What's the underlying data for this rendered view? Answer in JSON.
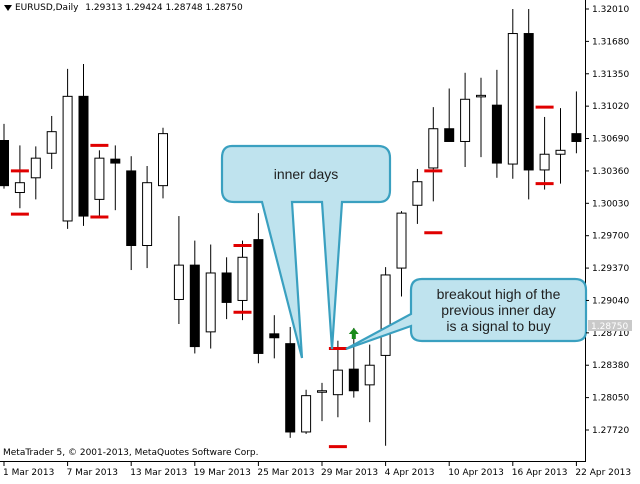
{
  "header": {
    "symbol": "EURUSD,Daily",
    "ohlc": "1.29313 1.29424 1.28748 1.28750"
  },
  "footer": {
    "copyright": "MetaTrader 5, © 2001-2013, MetaQuotes Software Corp."
  },
  "callouts": {
    "inner_days": "inner days",
    "breakout": "breakout high of the\nprevious inner day\nis a signal to buy"
  },
  "colors": {
    "bear": "#000000",
    "bull": "#ffffff",
    "marker": "#e00000",
    "arrow": "#1a8a1a",
    "callout_border": "#3aa0c0",
    "callout_fill": "#bfe3ee"
  },
  "chart_data": {
    "type": "candlestick",
    "title": "",
    "symbol": "EURUSD",
    "timeframe": "Daily",
    "current_price": "1.28750",
    "y_ticks": [
      "1.32010",
      "1.31680",
      "1.31350",
      "1.31020",
      "1.30690",
      "1.30360",
      "1.30030",
      "1.29700",
      "1.29370",
      "1.29040",
      "1.28710",
      "1.28380",
      "1.28050",
      "1.27720"
    ],
    "x_ticks": [
      {
        "label": "1 Mar 2013",
        "index": 0
      },
      {
        "label": "7 Mar 2013",
        "index": 4
      },
      {
        "label": "13 Mar 2013",
        "index": 8
      },
      {
        "label": "19 Mar 2013",
        "index": 12
      },
      {
        "label": "25 Mar 2013",
        "index": 16
      },
      {
        "label": "29 Mar 2013",
        "index": 20
      },
      {
        "label": "4 Apr 2013",
        "index": 24
      },
      {
        "label": "10 Apr 2013",
        "index": 28
      },
      {
        "label": "16 Apr 2013",
        "index": 32
      },
      {
        "label": "22 Apr 2013",
        "index": 36
      }
    ],
    "ylim": [
      1.276,
      1.321
    ],
    "grid": false,
    "candles": [
      {
        "o": 1.3067,
        "h": 1.3084,
        "l": 1.3018,
        "c": 1.3021
      },
      {
        "o": 1.3014,
        "h": 1.3062,
        "l": 1.2998,
        "c": 1.3024
      },
      {
        "o": 1.3029,
        "h": 1.3061,
        "l": 1.3007,
        "c": 1.3049
      },
      {
        "o": 1.3054,
        "h": 1.3092,
        "l": 1.3038,
        "c": 1.3076
      },
      {
        "o": 1.2985,
        "h": 1.314,
        "l": 1.2977,
        "c": 1.3112
      },
      {
        "o": 1.3112,
        "h": 1.3145,
        "l": 1.298,
        "c": 1.299
      },
      {
        "o": 1.3007,
        "h": 1.3057,
        "l": 1.2989,
        "c": 1.3049
      },
      {
        "o": 1.3048,
        "h": 1.3062,
        "l": 1.2996,
        "c": 1.3044
      },
      {
        "o": 1.3036,
        "h": 1.3051,
        "l": 1.2935,
        "c": 1.296
      },
      {
        "o": 1.296,
        "h": 1.3041,
        "l": 1.2937,
        "c": 1.3024
      },
      {
        "o": 1.3021,
        "h": 1.308,
        "l": 1.3008,
        "c": 1.3074
      },
      {
        "o": 1.2905,
        "h": 1.299,
        "l": 1.288,
        "c": 1.294
      },
      {
        "o": 1.294,
        "h": 1.2965,
        "l": 1.285,
        "c": 1.2857
      },
      {
        "o": 1.2872,
        "h": 1.2961,
        "l": 1.2855,
        "c": 1.2932
      },
      {
        "o": 1.2932,
        "h": 1.2948,
        "l": 1.2885,
        "c": 1.2902
      },
      {
        "o": 1.2904,
        "h": 1.2965,
        "l": 1.2884,
        "c": 1.2948
      },
      {
        "o": 1.2966,
        "h": 1.2993,
        "l": 1.284,
        "c": 1.285
      },
      {
        "o": 1.287,
        "h": 1.2889,
        "l": 1.2845,
        "c": 1.2866
      },
      {
        "o": 1.286,
        "h": 1.2877,
        "l": 1.2764,
        "c": 1.277
      },
      {
        "o": 1.277,
        "h": 1.2813,
        "l": 1.2768,
        "c": 1.2807
      },
      {
        "o": 1.2811,
        "h": 1.282,
        "l": 1.2781,
        "c": 1.2812
      },
      {
        "o": 1.2808,
        "h": 1.2863,
        "l": 1.2785,
        "c": 1.2833
      },
      {
        "o": 1.2834,
        "h": 1.2876,
        "l": 1.2805,
        "c": 1.2812
      },
      {
        "o": 1.2818,
        "h": 1.2859,
        "l": 1.278,
        "c": 1.2838
      },
      {
        "o": 1.2848,
        "h": 1.2938,
        "l": 1.2756,
        "c": 1.293
      },
      {
        "o": 1.2937,
        "h": 1.2995,
        "l": 1.2908,
        "c": 1.2993
      },
      {
        "o": 1.3001,
        "h": 1.3038,
        "l": 1.2982,
        "c": 1.3025
      },
      {
        "o": 1.3039,
        "h": 1.3101,
        "l": 1.3005,
        "c": 1.3079
      },
      {
        "o": 1.3079,
        "h": 1.312,
        "l": 1.3067,
        "c": 1.3066
      },
      {
        "o": 1.3066,
        "h": 1.3136,
        "l": 1.304,
        "c": 1.3109
      },
      {
        "o": 1.3112,
        "h": 1.3131,
        "l": 1.305,
        "c": 1.3113
      },
      {
        "o": 1.3103,
        "h": 1.3139,
        "l": 1.3029,
        "c": 1.3044
      },
      {
        "o": 1.3043,
        "h": 1.3201,
        "l": 1.3028,
        "c": 1.3176
      },
      {
        "o": 1.3176,
        "h": 1.3201,
        "l": 1.3007,
        "c": 1.3037
      },
      {
        "o": 1.3037,
        "h": 1.3091,
        "l": 1.3017,
        "c": 1.3053
      },
      {
        "o": 1.3053,
        "h": 1.31,
        "l": 1.3023,
        "c": 1.3057
      },
      {
        "o": 1.3074,
        "h": 1.3117,
        "l": 1.3054,
        "c": 1.3066
      }
    ],
    "inner_day_markers": [
      {
        "index": 1,
        "high": 1.3036,
        "low": 1.2992
      },
      {
        "index": 6,
        "high": 1.3062,
        "low": 1.2989
      },
      {
        "index": 15,
        "high": 1.296,
        "low": 1.2892
      },
      {
        "index": 21,
        "high": 1.2855,
        "low": 1.2755
      },
      {
        "index": 27,
        "high": 1.3036,
        "low": 1.2973
      },
      {
        "index": 34,
        "high": 1.3101,
        "low": 1.3023
      }
    ],
    "buy_signal_index": 22
  }
}
